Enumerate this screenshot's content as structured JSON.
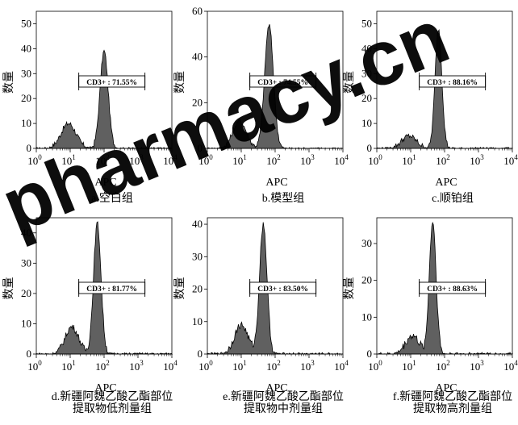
{
  "watermark": {
    "text": "pharmacy.cn",
    "color": "#e8141c"
  },
  "colors": {
    "histogram_fill": "#606060",
    "histogram_stroke": "#000000",
    "gate": "#000000"
  },
  "chart_data": [
    {
      "type": "histogram",
      "caption": "a.空白组",
      "xlabel": "APC",
      "ylabel": "数量",
      "xscale": "log",
      "xlim": [
        1,
        10000
      ],
      "xticks": [
        "10^0",
        "10^1",
        "10^2",
        "10^3",
        "10^4"
      ],
      "ylim": [
        0,
        55
      ],
      "yticks": [
        0,
        10,
        20,
        30,
        40,
        50
      ],
      "gate": {
        "label": "CD3+ : 71.55%",
        "range": [
          20,
          10000
        ]
      },
      "peaks": [
        {
          "center_log": 0.95,
          "sigma_log": 0.22,
          "height": 10
        },
        {
          "center_log": 2.0,
          "sigma_log": 0.12,
          "height": 39
        }
      ]
    },
    {
      "type": "histogram",
      "caption": "b.模型组",
      "xlabel": "APC",
      "ylabel": "数量",
      "xscale": "log",
      "xlim": [
        1,
        10000
      ],
      "xticks": [
        "10^0",
        "10^1",
        "10^2",
        "10^3",
        "10^4"
      ],
      "ylim": [
        0,
        60
      ],
      "yticks": [
        0,
        20,
        40,
        60
      ],
      "gate": {
        "label": "CD3+ : 74.55%",
        "range": [
          20,
          10000
        ]
      },
      "peaks": [
        {
          "center_log": 0.95,
          "sigma_log": 0.2,
          "height": 12
        },
        {
          "center_log": 1.82,
          "sigma_log": 0.13,
          "height": 54
        }
      ]
    },
    {
      "type": "histogram",
      "caption": "c.顺铂组",
      "xlabel": "APC",
      "ylabel": "数量",
      "xscale": "log",
      "xlim": [
        1,
        10000
      ],
      "xticks": [
        "10^0",
        "10^1",
        "10^2",
        "10^3",
        "10^4"
      ],
      "ylim": [
        0,
        55
      ],
      "yticks": [
        0,
        10,
        20,
        30,
        40,
        50
      ],
      "gate": {
        "label": "CD3+ : 88.16%",
        "range": [
          20,
          10000
        ]
      },
      "peaks": [
        {
          "center_log": 0.95,
          "sigma_log": 0.22,
          "height": 5
        },
        {
          "center_log": 1.82,
          "sigma_log": 0.1,
          "height": 48
        }
      ]
    },
    {
      "type": "histogram",
      "caption": "d.新疆阿魏乙酸乙酯部位提取物低剂量组",
      "caption_lines": [
        "d.新疆阿魏乙酸乙酯部位",
        "提取物低剂量组"
      ],
      "xlabel": "APC",
      "ylabel": "数量",
      "xscale": "log",
      "xlim": [
        1,
        10000
      ],
      "xticks": [
        "10^0",
        "10^1",
        "10^2",
        "10^3",
        "10^4"
      ],
      "ylim": [
        0,
        45
      ],
      "yticks": [
        0,
        10,
        20,
        30,
        40
      ],
      "gate": {
        "label": "CD3+ : 81.77%",
        "range": [
          20,
          10000
        ]
      },
      "peaks": [
        {
          "center_log": 1.05,
          "sigma_log": 0.2,
          "height": 9
        },
        {
          "center_log": 1.8,
          "sigma_log": 0.11,
          "height": 43
        }
      ]
    },
    {
      "type": "histogram",
      "caption": "e.新疆阿魏乙酸乙酯部位提取物中剂量组",
      "caption_lines": [
        "e.新疆阿魏乙酸乙酯部位",
        "提取物中剂量组"
      ],
      "xlabel": "APC",
      "ylabel": "数量",
      "xscale": "log",
      "xlim": [
        1,
        10000
      ],
      "xticks": [
        "10^0",
        "10^1",
        "10^2",
        "10^3",
        "10^4"
      ],
      "ylim": [
        0,
        42
      ],
      "yticks": [
        0,
        10,
        20,
        30,
        40
      ],
      "gate": {
        "label": "CD3+ : 83.50%",
        "range": [
          20,
          10000
        ]
      },
      "peaks": [
        {
          "center_log": 1.0,
          "sigma_log": 0.2,
          "height": 9
        },
        {
          "center_log": 1.65,
          "sigma_log": 0.11,
          "height": 40
        }
      ]
    },
    {
      "type": "histogram",
      "caption": "f.新疆阿魏乙酸乙酯部位提取物高剂量组",
      "caption_lines": [
        "f.新疆阿魏乙酸乙酯部位",
        "提取物高剂量组"
      ],
      "xlabel": "APC",
      "ylabel": "数量",
      "xscale": "log",
      "xlim": [
        1,
        10000
      ],
      "xticks": [
        "10^0",
        "10^1",
        "10^2",
        "10^3",
        "10^4"
      ],
      "ylim": [
        0,
        37
      ],
      "yticks": [
        0,
        10,
        20,
        30
      ],
      "gate": {
        "label": "CD3+ : 88.63%",
        "range": [
          20,
          10000
        ]
      },
      "peaks": [
        {
          "center_log": 1.05,
          "sigma_log": 0.2,
          "height": 5
        },
        {
          "center_log": 1.65,
          "sigma_log": 0.1,
          "height": 36
        }
      ]
    }
  ]
}
